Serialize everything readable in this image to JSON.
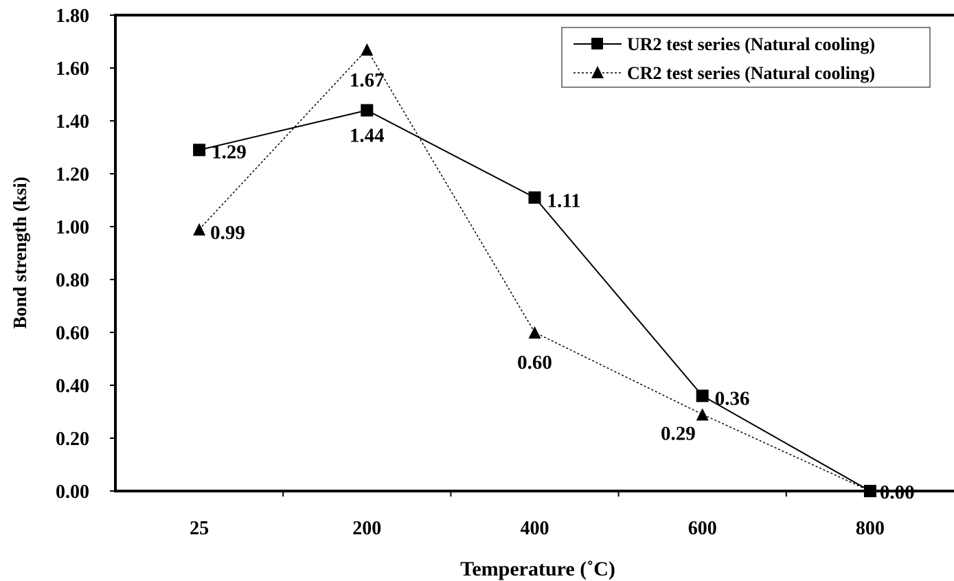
{
  "chart_data": {
    "type": "line",
    "categories": [
      "25",
      "200",
      "400",
      "600",
      "800"
    ],
    "xlabel": "Temperature (˚C)",
    "ylabel": "Bond strength (ksi)",
    "ylim": [
      0,
      1.8
    ],
    "y_ticks": [
      "0.00",
      "0.20",
      "0.40",
      "0.60",
      "0.80",
      "1.00",
      "1.20",
      "1.40",
      "1.60",
      "1.80"
    ],
    "grid": false,
    "legend_position": "top-right",
    "series": [
      {
        "name": "UR2 test series (Natural cooling)",
        "values": [
          1.29,
          1.44,
          1.11,
          0.36,
          0.0
        ],
        "labels": [
          "1.29",
          "1.44",
          "1.11",
          "0.36",
          "0.00"
        ],
        "marker": "square",
        "line_style": "solid",
        "color": "#000000"
      },
      {
        "name": "CR2 test series (Natural cooling)",
        "values": [
          0.99,
          1.67,
          0.6,
          0.29,
          0.0
        ],
        "labels": [
          "0.99",
          "1.67",
          "0.60",
          "0.29",
          ""
        ],
        "marker": "triangle",
        "line_style": "dotted",
        "color": "#000000"
      }
    ]
  }
}
